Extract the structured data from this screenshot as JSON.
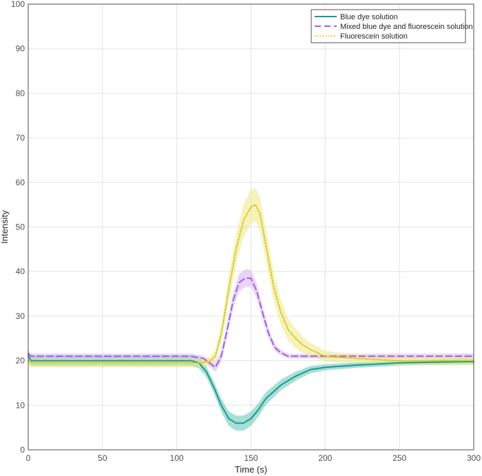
{
  "chart_data": {
    "type": "line",
    "title": "",
    "xlabel": "Time (s)",
    "ylabel": "Intensity",
    "xlim": [
      0,
      300
    ],
    "ylim": [
      0,
      100
    ],
    "xticks": [
      0,
      50,
      100,
      150,
      200,
      250,
      300
    ],
    "yticks": [
      0,
      10,
      20,
      30,
      40,
      50,
      60,
      70,
      80,
      90,
      100
    ],
    "grid": true,
    "legend_position": "top-right",
    "series": [
      {
        "name": "Blue dye solution",
        "color": "#1a9988",
        "band_color": "#5cc5b8",
        "style": "solid",
        "x": [
          0,
          2,
          5,
          10,
          20,
          40,
          60,
          80,
          100,
          110,
          115,
          120,
          125,
          130,
          135,
          140,
          145,
          150,
          155,
          160,
          170,
          180,
          190,
          200,
          220,
          250,
          280,
          300
        ],
        "y": [
          21,
          20,
          20,
          20,
          20,
          20,
          20,
          20,
          20,
          20,
          19.5,
          17.5,
          14,
          10,
          7,
          6,
          6,
          7,
          9,
          11.5,
          14.5,
          16.5,
          18,
          18.5,
          19,
          19.5,
          19.7,
          19.8
        ],
        "band": [
          1.2,
          1.2,
          1.2,
          1.2,
          1.2,
          1.2,
          1.2,
          1.2,
          1.2,
          1.2,
          1.2,
          1.2,
          1.3,
          1.5,
          1.6,
          1.7,
          1.7,
          1.6,
          1.5,
          1.4,
          1.2,
          1.0,
          0.8,
          0.7,
          0.6,
          0.6,
          0.6,
          0.6
        ]
      },
      {
        "name": "Mixed blue dye and fluorescein solution",
        "color": "#a05ee5",
        "band_color": "#d9b3f5",
        "style": "dashed",
        "x": [
          0,
          2,
          5,
          10,
          40,
          80,
          100,
          110,
          118,
          122,
          126,
          130,
          134,
          138,
          142,
          146,
          150,
          154,
          158,
          162,
          166,
          170,
          175,
          180,
          200,
          250,
          300
        ],
        "y": [
          21.5,
          21,
          21,
          21,
          21,
          21,
          21,
          21,
          20.5,
          19.5,
          18.5,
          21,
          27,
          33.5,
          37.5,
          38.5,
          38.5,
          35.5,
          30.5,
          26,
          23,
          21.8,
          21,
          21,
          21,
          21,
          21
        ],
        "band": [
          0.8,
          0.6,
          0.6,
          0.6,
          0.6,
          0.6,
          0.6,
          0.6,
          0.6,
          0.8,
          1.0,
          1.2,
          1.5,
          1.8,
          2.0,
          2.0,
          1.9,
          1.7,
          1.4,
          1.1,
          0.8,
          0.6,
          0.5,
          0.5,
          0.5,
          0.6,
          0.6
        ]
      },
      {
        "name": "Fluorescein solution",
        "color": "#d4c81a",
        "band_color": "#ece882",
        "style": "dotted",
        "x": [
          0,
          2,
          5,
          10,
          40,
          80,
          100,
          115,
          122,
          126,
          130,
          135,
          140,
          145,
          150,
          153,
          156,
          160,
          165,
          170,
          175,
          180,
          185,
          190,
          200,
          220,
          250,
          300
        ],
        "y": [
          20,
          19.5,
          19.5,
          19.5,
          19.5,
          19.5,
          19.5,
          19.5,
          19.8,
          21,
          26,
          36,
          45,
          51.5,
          54.5,
          55,
          53,
          46,
          37,
          31,
          27,
          25,
          23.5,
          22.5,
          21,
          20.5,
          20,
          20
        ],
        "band": [
          1.0,
          1.0,
          1.0,
          1.0,
          1.0,
          1.0,
          1.0,
          1.0,
          1.0,
          1.2,
          2.0,
          3.0,
          3.4,
          3.6,
          3.8,
          3.8,
          3.8,
          3.6,
          3.2,
          2.8,
          2.5,
          2.2,
          1.8,
          1.5,
          1.2,
          1.0,
          1.0,
          1.0
        ]
      }
    ]
  }
}
